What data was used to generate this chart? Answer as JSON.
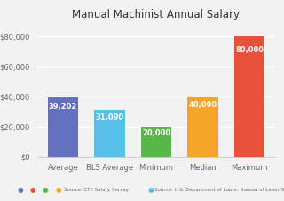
{
  "title": "Manual Machinist Annual Salary",
  "categories": [
    "Average",
    "BLS Average",
    "Minimum",
    "Median",
    "Maximum"
  ],
  "values": [
    39202,
    31090,
    20000,
    40000,
    80000
  ],
  "bar_colors": [
    "#6370c0",
    "#56c0ea",
    "#57b848",
    "#f5a528",
    "#e8503c"
  ],
  "bar_labels": [
    "39,202",
    "31,090",
    "20,000",
    "40,000",
    "80,000"
  ],
  "ylim": [
    0,
    88000
  ],
  "yticks": [
    0,
    20000,
    40000,
    60000,
    80000
  ],
  "background_color": "#f2f2f2",
  "grid_color": "#ffffff",
  "label_color": "#ffffff",
  "legend_dots": [
    "#6370c0",
    "#e8503c",
    "#57b848",
    "#f5a528"
  ],
  "legend1_text": "Source: CTE Salary Survey",
  "legend2_color": "#56c0ea",
  "legend2_text": "Source: U.S. Department of Labor, Bureau of Labor Statistics"
}
